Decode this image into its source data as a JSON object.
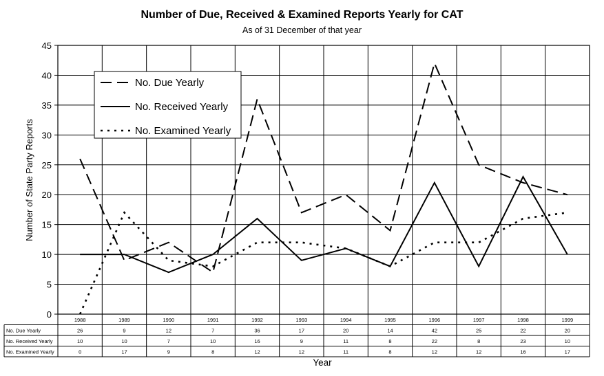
{
  "chart_data": {
    "type": "line",
    "title": "Number of Due, Received & Examined Reports Yearly for CAT",
    "subtitle": "As of 31 December of that year",
    "xlabel": "Year",
    "ylabel": "Number of State Party Reports",
    "ylim": [
      0,
      45
    ],
    "yticks": [
      0,
      5,
      10,
      15,
      20,
      25,
      30,
      35,
      40,
      45
    ],
    "grid": true,
    "legend_position": "top-left",
    "categories": [
      "1988",
      "1989",
      "1990",
      "1991",
      "1992",
      "1993",
      "1994",
      "1995",
      "1996",
      "1997",
      "1998",
      "1999"
    ],
    "series": [
      {
        "name": "No. Due Yearly",
        "table_label": "No. Due Yearly",
        "style": "dashed",
        "color": "#000000",
        "values": [
          26,
          9,
          12,
          7,
          36,
          17,
          20,
          14,
          42,
          25,
          22,
          20
        ]
      },
      {
        "name": "No. Received Yearly",
        "table_label": "No. Received Yearly",
        "style": "solid",
        "color": "#000000",
        "values": [
          10,
          10,
          7,
          10,
          16,
          9,
          11,
          8,
          22,
          8,
          23,
          10
        ]
      },
      {
        "name": "No. Examined Yearly",
        "table_label": "No. Examined Yearly",
        "style": "dotted",
        "color": "#000000",
        "values": [
          0,
          17,
          9,
          8,
          12,
          12,
          11,
          8,
          12,
          12,
          16,
          17
        ]
      }
    ]
  }
}
